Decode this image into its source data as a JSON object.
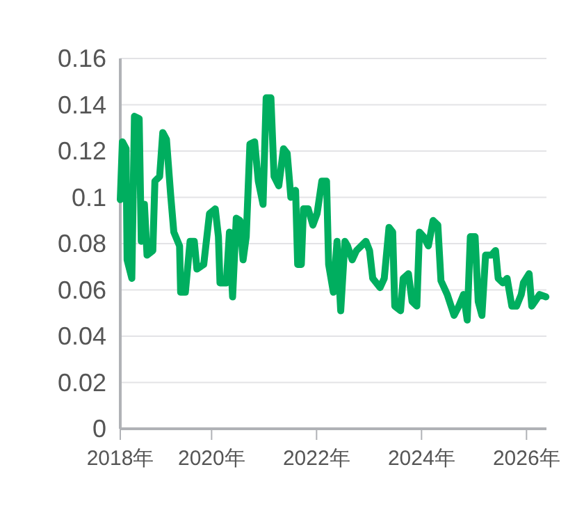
{
  "chart_data": {
    "type": "line",
    "x": [
      2018.26,
      2018.3,
      2018.37,
      2018.39,
      2018.48,
      2018.53,
      2018.62,
      2018.66,
      2018.72,
      2018.77,
      2018.88,
      2018.92,
      2019.01,
      2019.07,
      2019.14,
      2019.22,
      2019.28,
      2019.39,
      2019.41,
      2019.5,
      2019.59,
      2019.67,
      2019.72,
      2019.85,
      2019.96,
      2020.07,
      2020.13,
      2020.16,
      2020.28,
      2020.34,
      2020.4,
      2020.47,
      2020.54,
      2020.6,
      2020.66,
      2020.73,
      2020.82,
      2020.89,
      2020.98,
      2021.04,
      2021.13,
      2021.19,
      2021.28,
      2021.37,
      2021.44,
      2021.51,
      2021.6,
      2021.64,
      2021.71,
      2021.75,
      2021.84,
      2021.93,
      2022.01,
      2022.1,
      2022.19,
      2022.23,
      2022.32,
      2022.39,
      2022.46,
      2022.54,
      2022.59,
      2022.68,
      2022.76,
      2022.85,
      2022.94,
      2023.01,
      2023.07,
      2023.21,
      2023.29,
      2023.38,
      2023.45,
      2023.49,
      2023.6,
      2023.65,
      2023.75,
      2023.82,
      2023.91,
      2023.96,
      2024.04,
      2024.13,
      2024.22,
      2024.31,
      2024.37,
      2024.49,
      2024.62,
      2024.71,
      2024.8,
      2024.87,
      2024.93,
      2025.02,
      2025.08,
      2025.15,
      2025.22,
      2025.33,
      2025.41,
      2025.46,
      2025.55,
      2025.63,
      2025.72,
      2025.81,
      2025.9,
      2025.94,
      2026.05,
      2026.1,
      2026.16,
      2026.25,
      2026.37
    ],
    "series": [
      {
        "color": "#00ae5f",
        "values": [
          0.099,
          0.124,
          0.121,
          0.073,
          0.065,
          0.135,
          0.134,
          0.081,
          0.097,
          0.075,
          0.077,
          0.107,
          0.109,
          0.128,
          0.125,
          0.101,
          0.085,
          0.079,
          0.059,
          0.059,
          0.081,
          0.081,
          0.069,
          0.071,
          0.093,
          0.095,
          0.083,
          0.063,
          0.063,
          0.085,
          0.057,
          0.091,
          0.09,
          0.073,
          0.083,
          0.123,
          0.124,
          0.107,
          0.097,
          0.143,
          0.143,
          0.109,
          0.105,
          0.121,
          0.119,
          0.1,
          0.103,
          0.071,
          0.071,
          0.095,
          0.095,
          0.088,
          0.093,
          0.107,
          0.107,
          0.071,
          0.059,
          0.081,
          0.051,
          0.081,
          0.079,
          0.073,
          0.077,
          0.079,
          0.081,
          0.077,
          0.065,
          0.061,
          0.065,
          0.087,
          0.085,
          0.053,
          0.051,
          0.065,
          0.067,
          0.055,
          0.053,
          0.085,
          0.083,
          0.079,
          0.09,
          0.088,
          0.064,
          0.058,
          0.049,
          0.053,
          0.058,
          0.047,
          0.083,
          0.083,
          0.055,
          0.049,
          0.075,
          0.075,
          0.077,
          0.065,
          0.063,
          0.065,
          0.053,
          0.053,
          0.058,
          0.063,
          0.067,
          0.053,
          0.055,
          0.058,
          0.057
        ]
      }
    ],
    "xlim": [
      2018.26,
      2026.38
    ],
    "xticks": [
      {
        "value": 2018.26,
        "label": "2018年"
      },
      {
        "value": 2020,
        "label": "2020年"
      },
      {
        "value": 2022,
        "label": "2022年"
      },
      {
        "value": 2024,
        "label": "2024年"
      },
      {
        "value": 2026,
        "label": "2026年"
      }
    ],
    "ylim": [
      0,
      0.16
    ],
    "yticks": [
      0,
      0.02,
      0.04,
      0.06,
      0.08,
      0.1,
      0.12,
      0.14,
      0.16
    ],
    "grid": "y",
    "marker": "none",
    "line_style": "solid"
  }
}
